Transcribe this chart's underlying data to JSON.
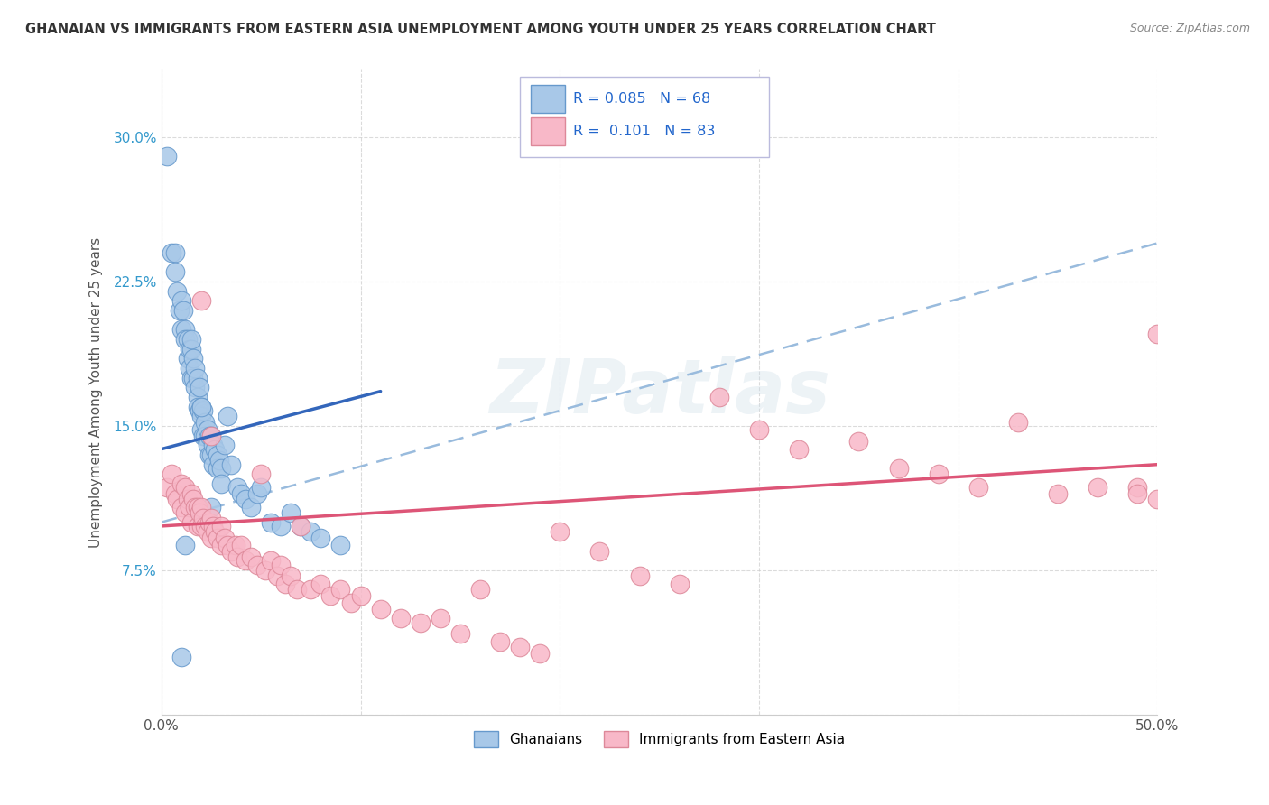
{
  "title": "GHANAIAN VS IMMIGRANTS FROM EASTERN ASIA UNEMPLOYMENT AMONG YOUTH UNDER 25 YEARS CORRELATION CHART",
  "source": "Source: ZipAtlas.com",
  "ylabel": "Unemployment Among Youth under 25 years",
  "xlim": [
    0.0,
    0.5
  ],
  "ylim": [
    0.0,
    0.335
  ],
  "yticks": [
    0.0,
    0.075,
    0.15,
    0.225,
    0.3
  ],
  "ytick_labels": [
    "",
    "7.5%",
    "15.0%",
    "22.5%",
    "30.0%"
  ],
  "xticks": [
    0.0,
    0.1,
    0.2,
    0.3,
    0.4,
    0.5
  ],
  "xtick_labels": [
    "0.0%",
    "",
    "",
    "",
    "",
    "50.0%"
  ],
  "ghanaian_color": "#a8c8e8",
  "ghanaian_edge": "#6699cc",
  "eastern_asia_color": "#f8b8c8",
  "eastern_asia_edge": "#dd8899",
  "trend_blue": "#3366bb",
  "trend_pink": "#dd5577",
  "trend_dash_color": "#99bbdd",
  "legend_R1": "0.085",
  "legend_N1": "68",
  "legend_R2": "0.101",
  "legend_N2": "83",
  "legend_label1": "Ghanaians",
  "legend_label2": "Immigrants from Eastern Asia",
  "watermark": "ZIPatlas",
  "ghanaian_x": [
    0.003,
    0.005,
    0.007,
    0.007,
    0.008,
    0.009,
    0.01,
    0.01,
    0.011,
    0.012,
    0.012,
    0.013,
    0.013,
    0.014,
    0.014,
    0.015,
    0.015,
    0.016,
    0.016,
    0.017,
    0.017,
    0.018,
    0.018,
    0.018,
    0.019,
    0.019,
    0.02,
    0.02,
    0.02,
    0.021,
    0.021,
    0.022,
    0.022,
    0.023,
    0.023,
    0.024,
    0.024,
    0.025,
    0.025,
    0.026,
    0.026,
    0.027,
    0.028,
    0.028,
    0.029,
    0.03,
    0.03,
    0.032,
    0.033,
    0.035,
    0.038,
    0.04,
    0.042,
    0.045,
    0.048,
    0.05,
    0.055,
    0.06,
    0.065,
    0.07,
    0.075,
    0.08,
    0.09,
    0.01,
    0.012,
    0.015,
    0.02,
    0.025
  ],
  "ghanaian_y": [
    0.29,
    0.24,
    0.24,
    0.23,
    0.22,
    0.21,
    0.215,
    0.2,
    0.21,
    0.2,
    0.195,
    0.195,
    0.185,
    0.19,
    0.18,
    0.19,
    0.175,
    0.185,
    0.175,
    0.18,
    0.17,
    0.175,
    0.165,
    0.16,
    0.17,
    0.158,
    0.16,
    0.155,
    0.148,
    0.158,
    0.145,
    0.152,
    0.145,
    0.148,
    0.14,
    0.145,
    0.135,
    0.145,
    0.135,
    0.14,
    0.13,
    0.138,
    0.135,
    0.128,
    0.132,
    0.128,
    0.12,
    0.14,
    0.155,
    0.13,
    0.118,
    0.115,
    0.112,
    0.108,
    0.115,
    0.118,
    0.1,
    0.098,
    0.105,
    0.098,
    0.095,
    0.092,
    0.088,
    0.03,
    0.088,
    0.195,
    0.16,
    0.108
  ],
  "eastern_asia_x": [
    0.003,
    0.005,
    0.007,
    0.008,
    0.01,
    0.01,
    0.012,
    0.012,
    0.013,
    0.014,
    0.015,
    0.015,
    0.016,
    0.017,
    0.018,
    0.018,
    0.019,
    0.02,
    0.02,
    0.021,
    0.022,
    0.023,
    0.024,
    0.025,
    0.025,
    0.026,
    0.027,
    0.028,
    0.03,
    0.03,
    0.032,
    0.033,
    0.035,
    0.037,
    0.038,
    0.04,
    0.042,
    0.045,
    0.048,
    0.05,
    0.052,
    0.055,
    0.058,
    0.06,
    0.062,
    0.065,
    0.068,
    0.07,
    0.075,
    0.08,
    0.085,
    0.09,
    0.095,
    0.1,
    0.11,
    0.12,
    0.13,
    0.14,
    0.15,
    0.16,
    0.17,
    0.18,
    0.19,
    0.2,
    0.22,
    0.24,
    0.26,
    0.28,
    0.3,
    0.32,
    0.35,
    0.37,
    0.39,
    0.41,
    0.43,
    0.45,
    0.47,
    0.49,
    0.5,
    0.5,
    0.49,
    0.02,
    0.025
  ],
  "eastern_asia_y": [
    0.118,
    0.125,
    0.115,
    0.112,
    0.12,
    0.108,
    0.118,
    0.105,
    0.112,
    0.108,
    0.115,
    0.1,
    0.112,
    0.108,
    0.108,
    0.098,
    0.105,
    0.108,
    0.098,
    0.102,
    0.098,
    0.095,
    0.1,
    0.102,
    0.092,
    0.098,
    0.095,
    0.092,
    0.098,
    0.088,
    0.092,
    0.088,
    0.085,
    0.088,
    0.082,
    0.088,
    0.08,
    0.082,
    0.078,
    0.125,
    0.075,
    0.08,
    0.072,
    0.078,
    0.068,
    0.072,
    0.065,
    0.098,
    0.065,
    0.068,
    0.062,
    0.065,
    0.058,
    0.062,
    0.055,
    0.05,
    0.048,
    0.05,
    0.042,
    0.065,
    0.038,
    0.035,
    0.032,
    0.095,
    0.085,
    0.072,
    0.068,
    0.165,
    0.148,
    0.138,
    0.142,
    0.128,
    0.125,
    0.118,
    0.152,
    0.115,
    0.118,
    0.118,
    0.198,
    0.112,
    0.115,
    0.215,
    0.145
  ],
  "blue_line_x0": 0.0,
  "blue_line_x1": 0.11,
  "blue_line_y0": 0.138,
  "blue_line_y1": 0.168,
  "pink_line_x0": 0.0,
  "pink_line_x1": 0.5,
  "pink_line_y0": 0.098,
  "pink_line_y1": 0.13,
  "dash_line_x0": 0.0,
  "dash_line_x1": 0.5,
  "dash_line_y0": 0.1,
  "dash_line_y1": 0.245
}
